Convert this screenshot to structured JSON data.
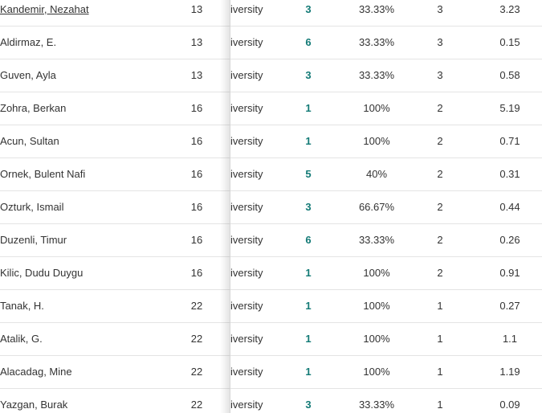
{
  "table": {
    "rows": [
      [
        "Kandemir, Nezahat",
        "13",
        "iversity",
        "3",
        "33.33%",
        "3",
        "3.23"
      ],
      [
        "Aldirmaz, E.",
        "13",
        "iversity",
        "6",
        "33.33%",
        "3",
        "0.15"
      ],
      [
        "Guven, Ayla",
        "13",
        "iversity",
        "3",
        "33.33%",
        "3",
        "0.58"
      ],
      [
        "Zohra, Berkan",
        "16",
        "iversity",
        "1",
        "100%",
        "2",
        "5.19"
      ],
      [
        "Acun, Sultan",
        "16",
        "iversity",
        "1",
        "100%",
        "2",
        "0.71"
      ],
      [
        "Ornek, Bulent Nafi",
        "16",
        "iversity",
        "5",
        "40%",
        "2",
        "0.31"
      ],
      [
        "Ozturk, Ismail",
        "16",
        "iversity",
        "3",
        "66.67%",
        "2",
        "0.44"
      ],
      [
        "Duzenli, Timur",
        "16",
        "iversity",
        "6",
        "33.33%",
        "2",
        "0.26"
      ],
      [
        "Kilic, Dudu Duygu",
        "16",
        "iversity",
        "1",
        "100%",
        "2",
        "0.91"
      ],
      [
        "Tanak, H.",
        "22",
        "iversity",
        "1",
        "100%",
        "1",
        "0.27"
      ],
      [
        "Atalik, G.",
        "22",
        "iversity",
        "1",
        "100%",
        "1",
        "1.1"
      ],
      [
        "Alacadag, Mine",
        "22",
        "iversity",
        "1",
        "100%",
        "1",
        "1.19"
      ],
      [
        "Yazgan, Burak",
        "22",
        "iversity",
        "3",
        "33.33%",
        "1",
        "0.09"
      ]
    ]
  }
}
